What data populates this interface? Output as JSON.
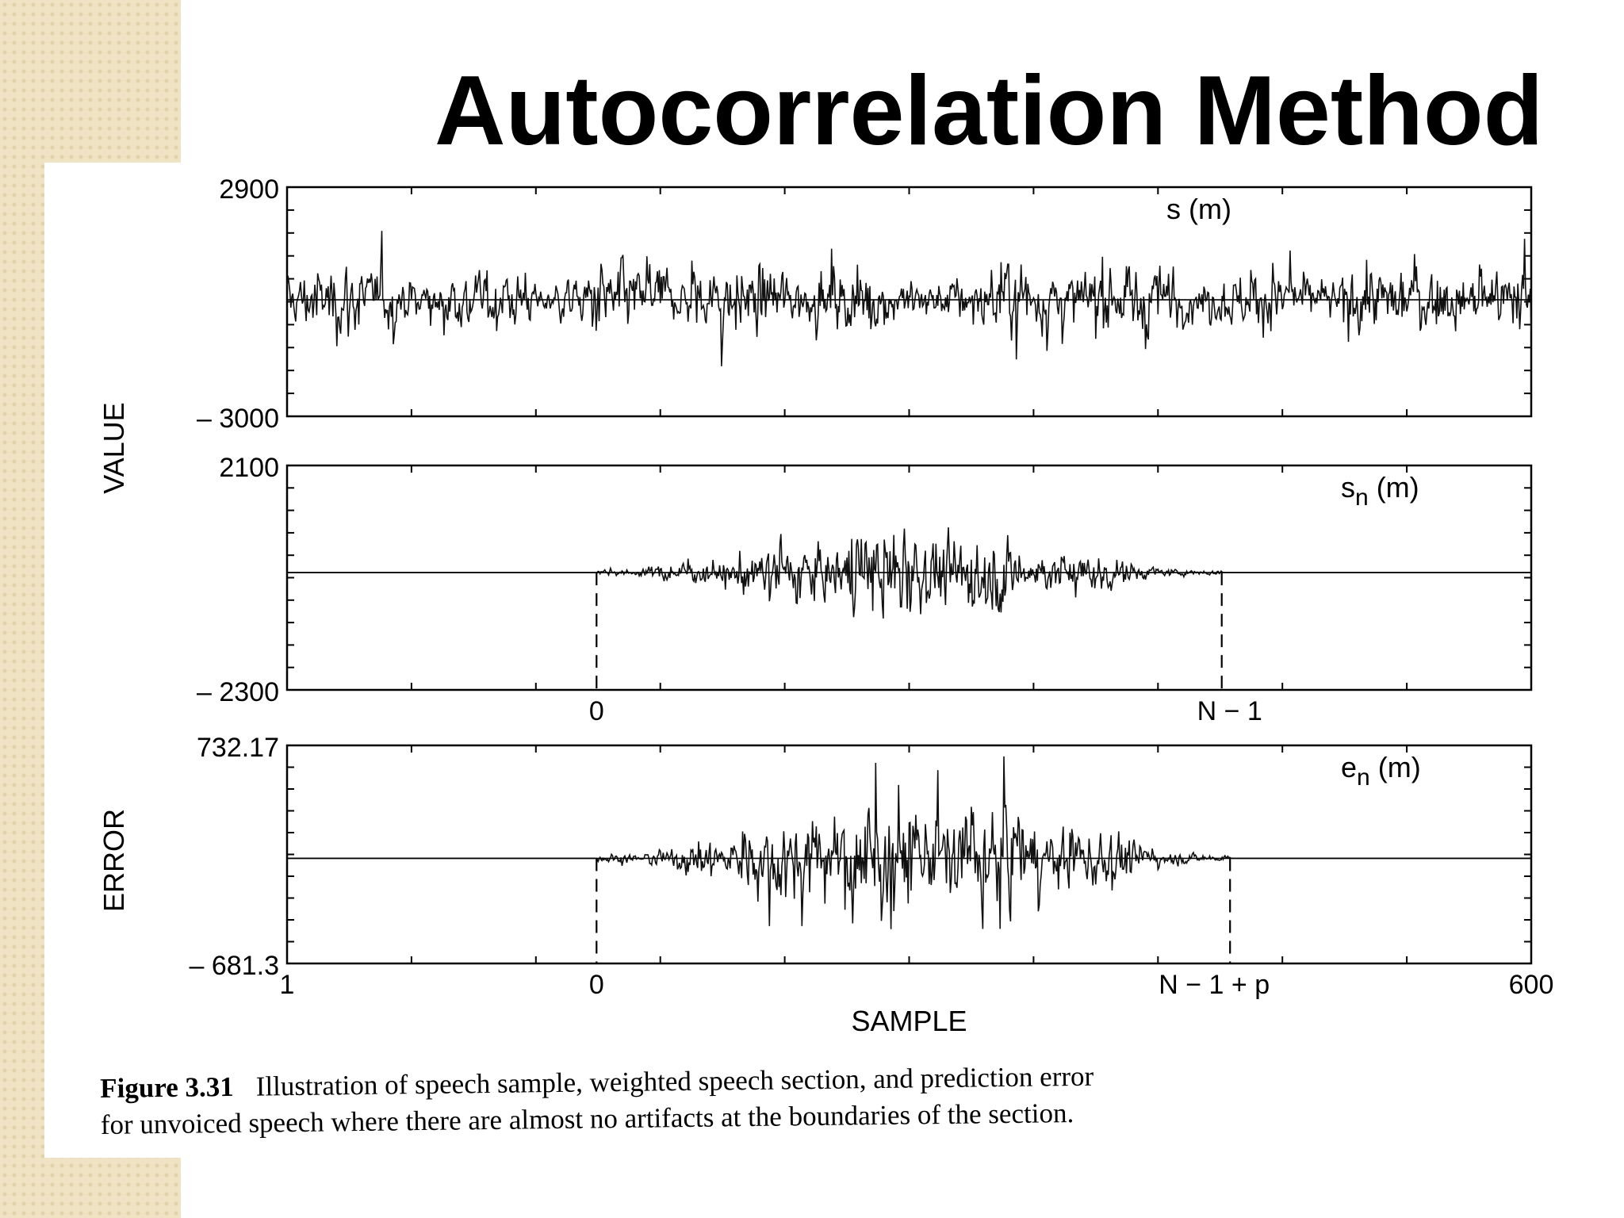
{
  "slide": {
    "title": "Autocorrelation Method"
  },
  "caption": {
    "label": "Figure 3.31",
    "line1": "Illustration of speech sample, weighted speech section, and prediction error",
    "line2": "for unvoiced speech where there are almost no artifacts at the boundaries of the section."
  },
  "chart_data": {
    "type": "line",
    "xlabel": "SAMPLE",
    "xlim": [
      1,
      600
    ],
    "x_tick_labels": [
      "1",
      "600"
    ],
    "window_markers": {
      "start_label": "0",
      "start_x": 150,
      "end_label": "N − 1",
      "end_x": 451,
      "error_end_label": "N − 1 + p",
      "error_end_x": 455
    },
    "panels": [
      {
        "ylabel": "",
        "ylim": [
          -3000,
          2900
        ],
        "y_tick_labels": [
          "2900",
          "– 3000"
        ],
        "series_label": "s (m)",
        "signal": "unvoiced speech, full frame, peaks about ±1900"
      },
      {
        "ylabel": "VALUE",
        "ylim": [
          -2300,
          2100
        ],
        "y_tick_labels": [
          "2100",
          "– 2300"
        ],
        "series_label": "sn (m)",
        "series_label_base": "s",
        "series_label_sub": "n",
        "series_label_rest": " (m)",
        "signal": "windowed section, zero outside 0..N-1"
      },
      {
        "ylabel": "ERROR",
        "ylim": [
          -681.3,
          732.17
        ],
        "y_tick_labels": [
          "732.17",
          "– 681.3"
        ],
        "series_label": "en (m)",
        "series_label_base": "e",
        "series_label_sub": "n",
        "series_label_rest": " (m)",
        "signal": "prediction error, nonzero 0..N-1+p"
      }
    ]
  }
}
